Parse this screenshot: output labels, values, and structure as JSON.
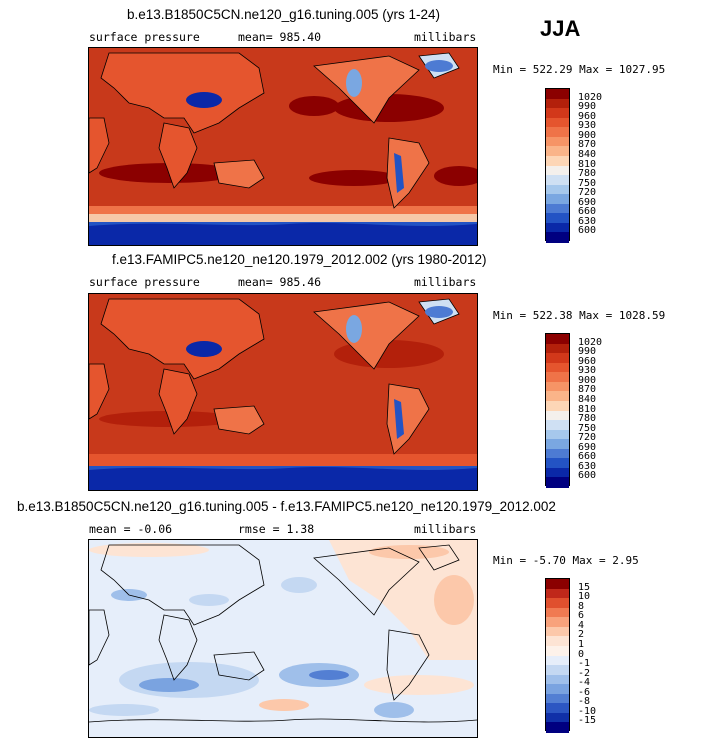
{
  "season": "JJA",
  "chart_data": [
    {
      "type": "heatmap",
      "title": "b.e13.B1850C5CN.ne120_g16.tuning.005 (yrs 1-24)",
      "variable": "surface pressure",
      "mean_text": "mean= 985.40",
      "units": "millibars",
      "minmax_text": "Min = 522.29 Max = 1027.95",
      "min": 522.29,
      "max": 1027.95,
      "mean": 985.4,
      "levels": [
        "1020",
        "990",
        "960",
        "930",
        "900",
        "870",
        "840",
        "810",
        "780",
        "750",
        "720",
        "690",
        "660",
        "630",
        "600"
      ],
      "colors": [
        "#8b0000",
        "#b3200b",
        "#d2381a",
        "#e5552e",
        "#ef7348",
        "#f69466",
        "#fab489",
        "#fdd6b6",
        "#f4f0ec",
        "#cfe0f3",
        "#a6c8ec",
        "#7aa7e1",
        "#4d7bd3",
        "#2353c4",
        "#0a28a8",
        "#000080"
      ]
    },
    {
      "type": "heatmap",
      "title": "f.e13.FAMIPC5.ne120_ne120.1979_2012.002 (yrs 1980-2012)",
      "variable": "surface pressure",
      "mean_text": "mean= 985.46",
      "units": "millibars",
      "minmax_text": "Min = 522.38 Max = 1028.59",
      "min": 522.38,
      "max": 1028.59,
      "mean": 985.46,
      "levels": [
        "1020",
        "990",
        "960",
        "930",
        "900",
        "870",
        "840",
        "810",
        "780",
        "750",
        "720",
        "690",
        "660",
        "630",
        "600"
      ],
      "colors": [
        "#8b0000",
        "#b3200b",
        "#d2381a",
        "#e5552e",
        "#ef7348",
        "#f69466",
        "#fab489",
        "#fdd6b6",
        "#f4f0ec",
        "#cfe0f3",
        "#a6c8ec",
        "#7aa7e1",
        "#4d7bd3",
        "#2353c4",
        "#0a28a8",
        "#000080"
      ]
    },
    {
      "type": "heatmap",
      "title": "b.e13.B1850C5CN.ne120_g16.tuning.005 - f.e13.FAMIPC5.ne120_ne120.1979_2012.002",
      "mean_text": "mean = -0.06",
      "rmse_text": "rmse =   1.38",
      "units": "millibars",
      "minmax_text": "Min = -5.70 Max =   2.95",
      "min": -5.7,
      "max": 2.95,
      "mean": -0.06,
      "rmse": 1.38,
      "levels": [
        "15",
        "10",
        "8",
        "6",
        "4",
        "2",
        "1",
        "0",
        "-1",
        "-2",
        "-4",
        "-6",
        "-8",
        "-10",
        "-15"
      ],
      "colors": [
        "#8b0000",
        "#c0281a",
        "#e0502e",
        "#f07a52",
        "#f8a27c",
        "#fcc8aa",
        "#fde4d4",
        "#fdf2ea",
        "#e6eefa",
        "#c4d8f2",
        "#9fbfea",
        "#7aa3e0",
        "#537fd3",
        "#2c56c2",
        "#1030a8",
        "#000080"
      ]
    }
  ],
  "colors": {
    "ocean_full": "#c8391b",
    "ocean_diff": "#eef3fb"
  }
}
